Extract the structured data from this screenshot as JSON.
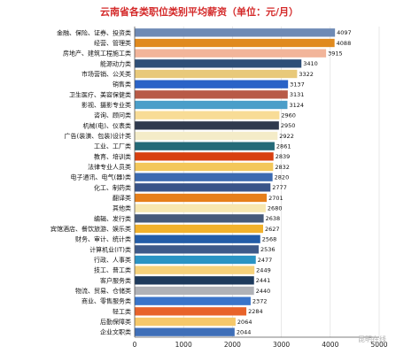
{
  "chart_data": {
    "type": "bar",
    "orientation": "horizontal",
    "title": "云南省各类职位类别平均薪资（单位：元/月）",
    "categories": [
      "金融、保险、证券、投资类",
      "经营、管理类",
      "房地产、建筑工程施工类",
      "能源动力类",
      "市场营销、公关类",
      "销售类",
      "卫生医疗、美容保健类",
      "影视、摄影专业类",
      "咨询、顾问类",
      "机械(电)、仪表类",
      "广告(装潢、包装)设计类",
      "工业、工厂类",
      "教育、培训类",
      "法律专业人员类",
      "电子通讯、电气(器)类",
      "化工、制药类",
      "翻译类",
      "其他类",
      "编辑、发行类",
      "宾馆酒店、餐饮旅游、娱乐类",
      "财务、审计、统计类",
      "计算机业(IT)类",
      "行政、人事类",
      "技工、普工类",
      "客户服务类",
      "物流、贸易、仓储类",
      "商业、零售服务类",
      "轻工类",
      "后勤保障类",
      "企业文职类"
    ],
    "values": [
      4097,
      4088,
      3915,
      3410,
      3322,
      3137,
      3131,
      3124,
      2960,
      2950,
      2922,
      2861,
      2839,
      2832,
      2820,
      2777,
      2701,
      2680,
      2638,
      2627,
      2568,
      2536,
      2477,
      2449,
      2441,
      2440,
      2372,
      2284,
      2064,
      2044
    ],
    "colors": [
      "#6e8ab5",
      "#e08a1e",
      "#f2b59a",
      "#2e4f78",
      "#e8c97a",
      "#2a63c7",
      "#b85a46",
      "#4a9ec9",
      "#f8dc96",
      "#2f3a4e",
      "#f4ecc8",
      "#246a78",
      "#d84010",
      "#f3c75a",
      "#3c6ab0",
      "#395489",
      "#e67f1a",
      "#f7e7b0",
      "#465a7a",
      "#f2b22c",
      "#235da8",
      "#3e5a89",
      "#2a94c4",
      "#f5d17a",
      "#1d3a5c",
      "#b0b2b7",
      "#3a74c9",
      "#e8632a",
      "#f6c86a",
      "#3f6fb8"
    ],
    "xlim": [
      0,
      5000
    ],
    "xticks": [
      "0",
      "1000",
      "2000",
      "3000",
      "4000",
      "5000"
    ],
    "grid": true
  },
  "watermark": "昆明在线"
}
